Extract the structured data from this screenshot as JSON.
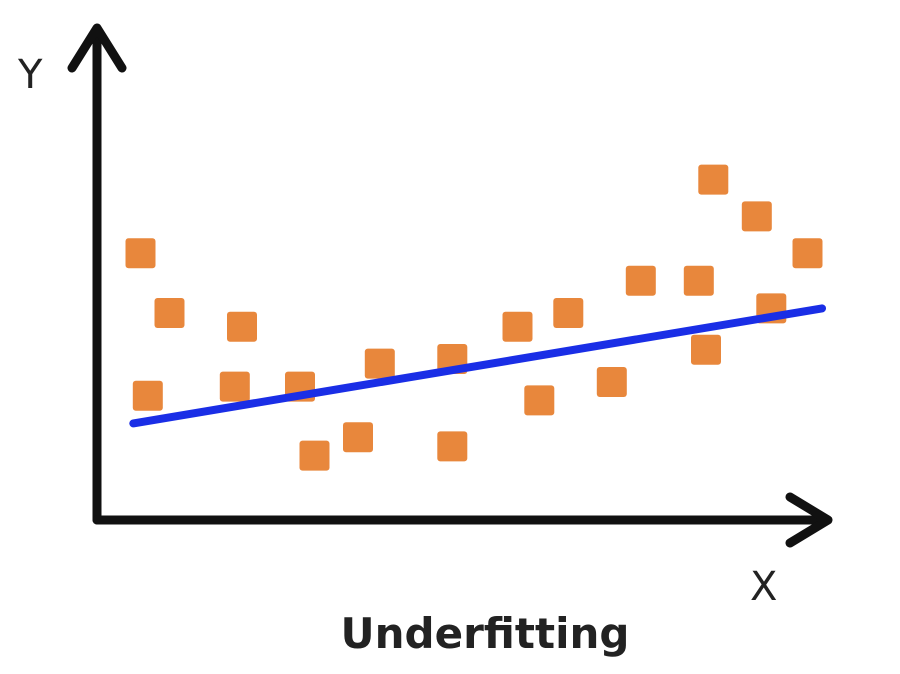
{
  "chart_data": {
    "type": "scatter",
    "title": "Underfitting",
    "xlabel": "X",
    "ylabel": "Y",
    "xlim": [
      0,
      100
    ],
    "ylim": [
      0,
      100
    ],
    "grid": false,
    "point_color": "#e8873c",
    "line_color": "#1a2ee6",
    "axis_color": "#111111",
    "points": [
      {
        "x": 6,
        "y": 58
      },
      {
        "x": 7,
        "y": 27
      },
      {
        "x": 10,
        "y": 45
      },
      {
        "x": 19,
        "y": 29
      },
      {
        "x": 20,
        "y": 42
      },
      {
        "x": 28,
        "y": 29
      },
      {
        "x": 30,
        "y": 14
      },
      {
        "x": 36,
        "y": 18
      },
      {
        "x": 39,
        "y": 34
      },
      {
        "x": 49,
        "y": 16
      },
      {
        "x": 49,
        "y": 35
      },
      {
        "x": 58,
        "y": 42
      },
      {
        "x": 61,
        "y": 26
      },
      {
        "x": 65,
        "y": 45
      },
      {
        "x": 71,
        "y": 30
      },
      {
        "x": 75,
        "y": 52
      },
      {
        "x": 83,
        "y": 52
      },
      {
        "x": 84,
        "y": 37
      },
      {
        "x": 85,
        "y": 74
      },
      {
        "x": 91,
        "y": 66
      },
      {
        "x": 93,
        "y": 46
      },
      {
        "x": 98,
        "y": 58
      }
    ],
    "fit_line": {
      "x": [
        5,
        100
      ],
      "y": [
        21,
        46
      ]
    }
  }
}
